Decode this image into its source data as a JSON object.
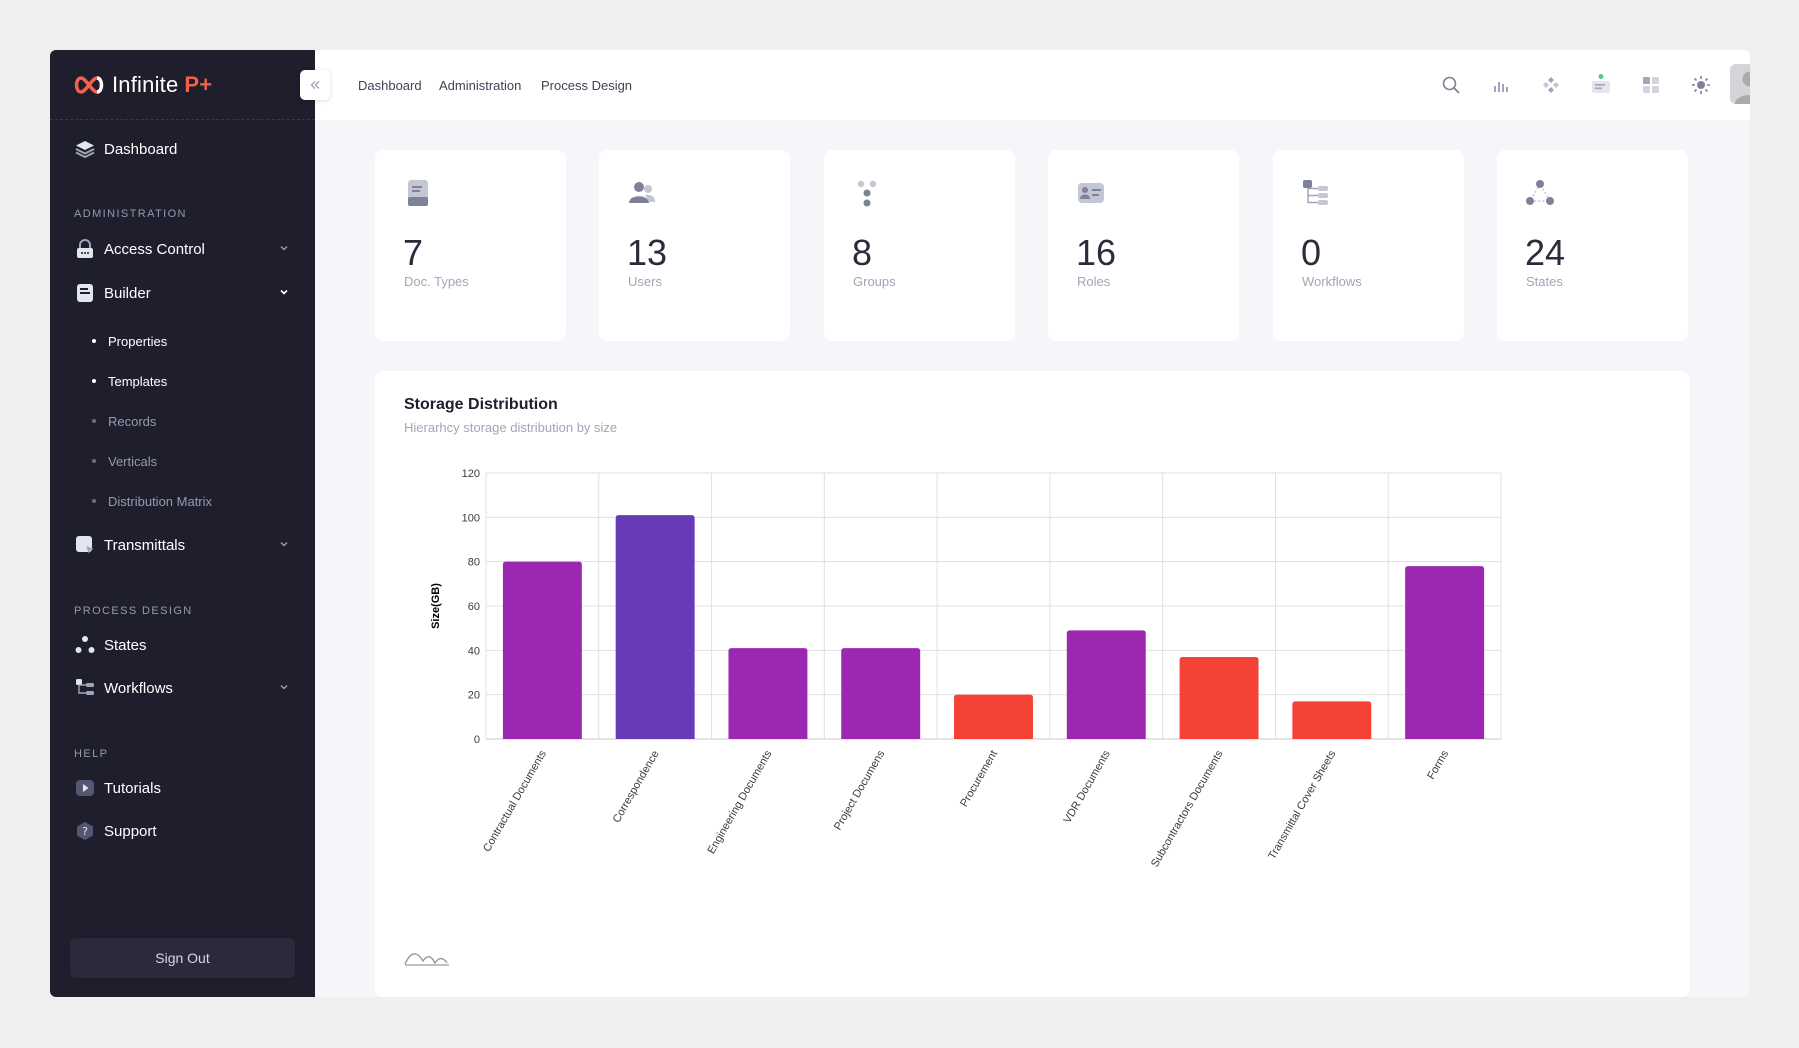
{
  "brand": {
    "name": "Infinite",
    "suffix": "P+"
  },
  "header": {
    "links": [
      "Dashboard",
      "Administration",
      "Process Design"
    ]
  },
  "sidebar": {
    "dashboard": "Dashboard",
    "sections": {
      "administration": "ADMINISTRATION",
      "process_design": "PROCESS DESIGN",
      "help": "HELP"
    },
    "access_control": "Access Control",
    "builder": "Builder",
    "builder_items": [
      "Properties",
      "Templates",
      "Records",
      "Verticals",
      "Distribution Matrix"
    ],
    "transmittals": "Transmittals",
    "states": "States",
    "workflows": "Workflows",
    "tutorials": "Tutorials",
    "support": "Support",
    "sign_out": "Sign Out"
  },
  "stats": [
    {
      "value": "7",
      "label": "Doc. Types",
      "icon": "document-icon"
    },
    {
      "value": "13",
      "label": "Users",
      "icon": "users-icon"
    },
    {
      "value": "8",
      "label": "Groups",
      "icon": "groups-icon"
    },
    {
      "value": "16",
      "label": "Roles",
      "icon": "roles-icon"
    },
    {
      "value": "0",
      "label": "Workflows",
      "icon": "workflow-icon"
    },
    {
      "value": "24",
      "label": "States",
      "icon": "states-icon"
    }
  ],
  "chart": {
    "title": "Storage Distribution",
    "subtitle": "Hierarhcy storage distribution by size"
  },
  "chart_data": {
    "type": "bar",
    "categories": [
      "Contractual Documents",
      "Correspondence",
      "Engineering Documents",
      "Project Documens",
      "Procurement",
      "VDR Documents",
      "Subcontractors Documents",
      "Transmittal Cover Sheets",
      "Forms"
    ],
    "values": [
      80,
      101,
      41,
      41,
      20,
      49,
      37,
      17,
      78
    ],
    "colors": [
      "#9c27b0",
      "#673ab7",
      "#9c27b0",
      "#9c27b0",
      "#f44336",
      "#9c27b0",
      "#f44336",
      "#f44336",
      "#9c27b0"
    ],
    "ylabel": "Size(GB)",
    "ylim": [
      0,
      120
    ],
    "yticks": [
      "0",
      "20",
      "40",
      "60",
      "80",
      "100",
      "120"
    ],
    "grid": true
  }
}
